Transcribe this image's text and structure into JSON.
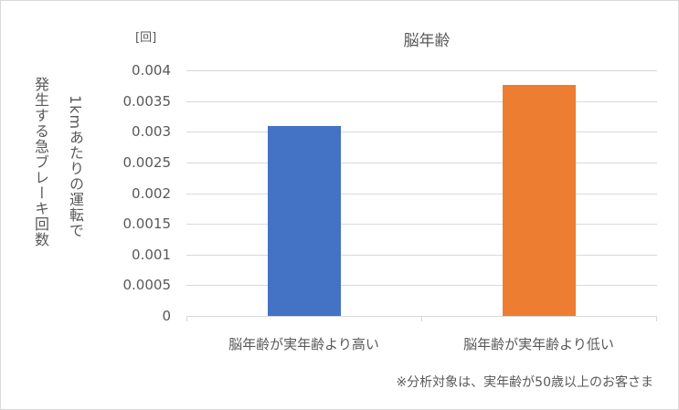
{
  "chart_data": {
    "type": "bar",
    "title": "脳年齢",
    "unit_label": "[回]",
    "ylabel_lines": [
      "発生する急ブレーキ回数",
      "1kmあたりの運転で"
    ],
    "xlabel": "",
    "categories": [
      "脳年齢が実年齢より高い",
      "脳年齢が実年齢より低い"
    ],
    "values": [
      0.0031,
      0.00376
    ],
    "colors": [
      "#4472c4",
      "#ed7d31"
    ],
    "ylim": [
      0,
      0.004
    ],
    "yticks": [
      "0.004",
      "0.0035",
      "0.003",
      "0.0025",
      "0.002",
      "0.0015",
      "0.001",
      "0.0005",
      "0"
    ],
    "grid": true,
    "legend": "none",
    "annotation": "※分析対象は、実年齢が50歳以上のお客さま"
  }
}
